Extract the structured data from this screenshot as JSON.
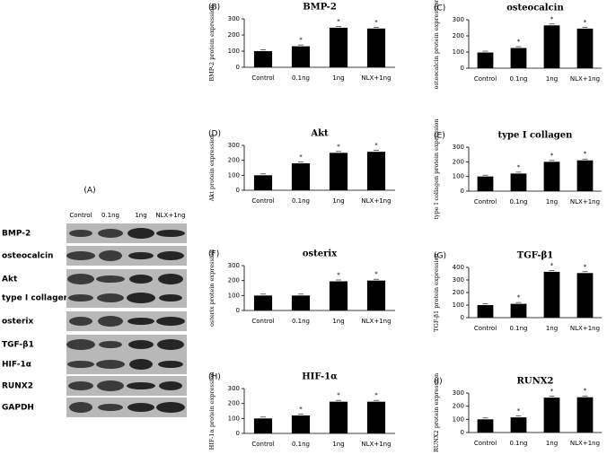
{
  "blot": {
    "label": "(A)",
    "lanes": [
      "Control",
      "0.1ng",
      "1ng",
      "NLX+1ng"
    ],
    "rows": [
      "BMP-2",
      "osteocalcin",
      "Akt",
      "type I collagen",
      "osterix",
      "TGF-β1",
      "HIF-1α",
      "RUNX2",
      "GAPDH"
    ]
  },
  "chart_data": [
    {
      "type": "bar",
      "label": "(B)",
      "title": "BMP-2",
      "ylabel": "BMP-2 protein expression",
      "categories": [
        "Control",
        "0.1ng",
        "1ng",
        "NLX+1ng"
      ],
      "values": [
        100,
        130,
        245,
        240
      ],
      "significance": [
        null,
        "*",
        "*",
        "*"
      ],
      "color": "#000000",
      "ylim": [
        0,
        300
      ],
      "yticks": [
        0,
        100,
        200,
        300
      ]
    },
    {
      "type": "bar",
      "label": "(C)",
      "title": "osteocalcin",
      "ylabel": "osteocalcin protein expression",
      "categories": [
        "Control",
        "0.1ng",
        "1ng",
        "NLX+1ng"
      ],
      "values": [
        97,
        125,
        265,
        245
      ],
      "significance": [
        null,
        "*",
        "*",
        "*"
      ],
      "color": "#000000",
      "ylim": [
        0,
        300
      ],
      "yticks": [
        0,
        100,
        200,
        300
      ]
    },
    {
      "type": "bar",
      "label": "(D)",
      "title": "Akt",
      "ylabel": "Akt protein expression",
      "categories": [
        "Control",
        "0.1ng",
        "1ng",
        "NLX+1ng"
      ],
      "values": [
        100,
        180,
        250,
        257
      ],
      "significance": [
        null,
        "*",
        "*",
        "*"
      ],
      "color": "#000000",
      "ylim": [
        0,
        300
      ],
      "yticks": [
        0,
        100,
        200,
        300
      ]
    },
    {
      "type": "bar",
      "label": "(E)",
      "title": "type I collagen",
      "ylabel": "type I collagen protein expression",
      "categories": [
        "Control",
        "0.1ng",
        "1ng",
        "NLX+1ng"
      ],
      "values": [
        100,
        120,
        200,
        210
      ],
      "significance": [
        null,
        "*",
        "*",
        "*"
      ],
      "color": "#000000",
      "ylim": [
        0,
        300
      ],
      "yticks": [
        0,
        100,
        200,
        300
      ]
    },
    {
      "type": "bar",
      "label": "(F)",
      "title": "osterix",
      "ylabel": "osterix protein expression",
      "categories": [
        "Control",
        "0.1ng",
        "1ng",
        "NLX+1ng"
      ],
      "values": [
        100,
        100,
        195,
        200
      ],
      "significance": [
        null,
        null,
        "*",
        "*"
      ],
      "color": "#000000",
      "ylim": [
        0,
        300
      ],
      "yticks": [
        0,
        100,
        200,
        300
      ]
    },
    {
      "type": "bar",
      "label": "(G)",
      "title": "TGF-β1",
      "ylabel": "TGF-β1 protein expression",
      "categories": [
        "Control",
        "0.1ng",
        "1ng",
        "NLX+1ng"
      ],
      "values": [
        100,
        110,
        365,
        355
      ],
      "significance": [
        null,
        "*",
        "*",
        "*"
      ],
      "color": "#000000",
      "ylim": [
        0,
        400
      ],
      "yticks": [
        0,
        100,
        200,
        300,
        400
      ]
    },
    {
      "type": "bar",
      "label": "(H)",
      "title": "HIF-1α",
      "ylabel": "HIF-1α protein expression",
      "categories": [
        "Control",
        "0.1ng",
        "1ng",
        "NLX+1ng"
      ],
      "values": [
        100,
        120,
        212,
        212
      ],
      "significance": [
        null,
        "*",
        "*",
        "*"
      ],
      "color": "#000000",
      "ylim": [
        0,
        300
      ],
      "yticks": [
        0,
        100,
        200,
        300
      ]
    },
    {
      "type": "bar",
      "label": "(I)",
      "title": "RUNX2",
      "ylabel": "RUNX2 protein expression",
      "categories": [
        "Control",
        "0.1ng",
        "1ng",
        "NLX+1ng"
      ],
      "values": [
        100,
        115,
        265,
        268
      ],
      "significance": [
        null,
        "*",
        "*",
        "*"
      ],
      "color": "#000000",
      "ylim": [
        0,
        300
      ],
      "yticks": [
        0,
        100,
        200,
        300
      ]
    }
  ]
}
